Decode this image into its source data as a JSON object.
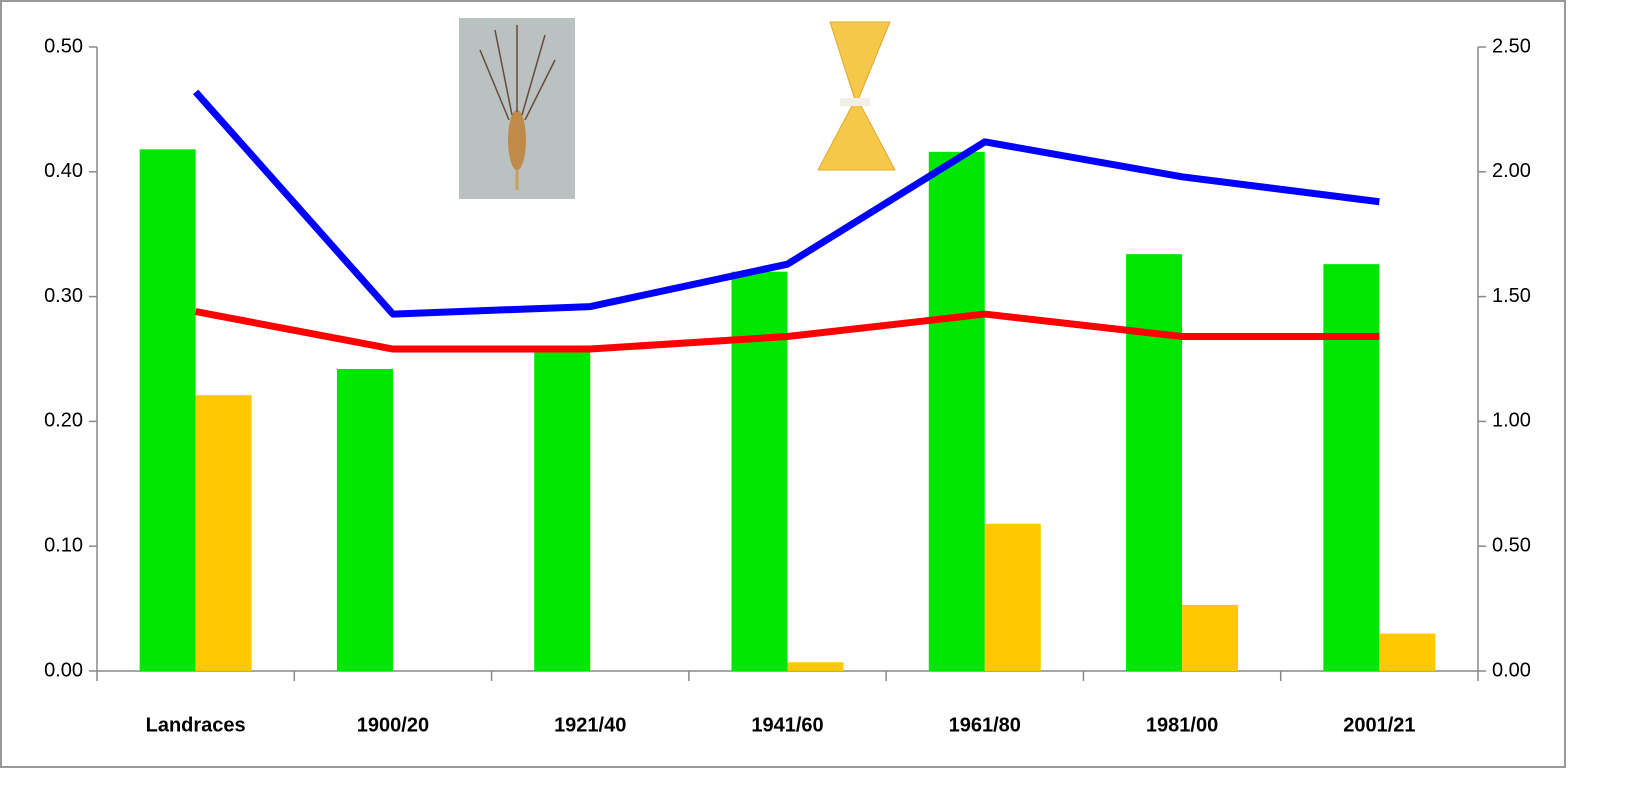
{
  "chart_data": {
    "type": "bar",
    "categories": [
      "Landraces",
      "1900/20",
      "1921/40",
      "1941/60",
      "1961/80",
      "1981/00",
      "2001/21"
    ],
    "series": [
      {
        "type": "bar",
        "color": "#00e600",
        "values": [
          0.418,
          0.242,
          0.257,
          0.32,
          0.416,
          0.334,
          0.326
        ]
      },
      {
        "type": "bar",
        "color": "#ffc800",
        "values": [
          0.221,
          0,
          0,
          0.007,
          0.118,
          0.053,
          0.03
        ]
      },
      {
        "type": "line",
        "axis": "y2",
        "color": "#0000ff",
        "values": [
          2.32,
          1.43,
          1.46,
          1.63,
          2.12,
          1.98,
          1.88
        ]
      },
      {
        "type": "line",
        "axis": "y2",
        "color": "#ff0000",
        "values": [
          1.44,
          1.29,
          1.29,
          1.34,
          1.43,
          1.34,
          1.34
        ]
      }
    ],
    "ylim": [
      0,
      0.5
    ],
    "yticks": [
      {
        "value": 0,
        "label": "0.00"
      },
      {
        "value": 0.1,
        "label": "0.10"
      },
      {
        "value": 0.2,
        "label": "0.20"
      },
      {
        "value": 0.3,
        "label": "0.30"
      },
      {
        "value": 0.4,
        "label": "0.40"
      },
      {
        "value": 0.5,
        "label": "0.50"
      }
    ],
    "y2lim": [
      0,
      2.5
    ],
    "y2ticks": [
      {
        "value": 0,
        "label": "0.00"
      },
      {
        "value": 0.5,
        "label": "0.50"
      },
      {
        "value": 1,
        "label": "1.00"
      },
      {
        "value": 1.5,
        "label": "1.50"
      },
      {
        "value": 2,
        "label": "2.00"
      },
      {
        "value": 2.5,
        "label": "2.50"
      }
    ]
  }
}
